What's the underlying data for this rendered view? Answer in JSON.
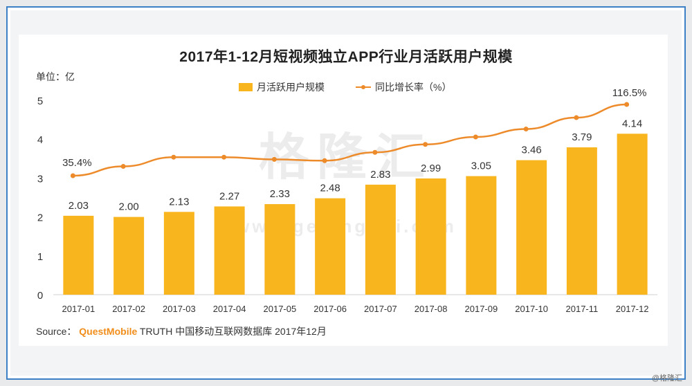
{
  "chart_data": {
    "type": "bar",
    "title": "2017年1-12月短视频独立APP行业月活跃用户规模",
    "unit_label": "单位：亿",
    "categories": [
      "2017-01",
      "2017-02",
      "2017-03",
      "2017-04",
      "2017-05",
      "2017-06",
      "2017-07",
      "2017-08",
      "2017-09",
      "2017-10",
      "2017-11",
      "2017-12"
    ],
    "series": [
      {
        "name": "月活跃用户规模",
        "kind": "bar",
        "color": "#f9b51e",
        "values": [
          2.03,
          2.0,
          2.13,
          2.27,
          2.33,
          2.48,
          2.83,
          2.99,
          3.05,
          3.46,
          3.79,
          4.14
        ],
        "labels": [
          "2.03",
          "2.00",
          "2.13",
          "2.27",
          "2.33",
          "2.48",
          "2.83",
          "2.99",
          "3.05",
          "3.46",
          "3.79",
          "4.14"
        ]
      },
      {
        "name": "同比增长率（%）",
        "kind": "line",
        "color": "#ed8b2b",
        "values": [
          35.4,
          46.0,
          56.5,
          56.5,
          54.0,
          52.5,
          62.0,
          71.0,
          79.5,
          88.5,
          101.5,
          116.5
        ],
        "labels": [
          "35.4%",
          "",
          "",
          "",
          "",
          "",
          "",
          "",
          "",
          "",
          "",
          "116.5%"
        ]
      }
    ],
    "y_ticks": [
      "0",
      "1",
      "2",
      "3",
      "4",
      "5"
    ],
    "ylim": [
      0,
      5
    ],
    "grid": false,
    "legend_position": "top-center",
    "watermark": "格隆汇",
    "watermark_url": "www.gelonghui.com"
  },
  "source": {
    "prefix": "Source：",
    "brand": "QuestMobile",
    "rest": "TRUTH 中国移动互联网数据库 2017年12月"
  },
  "corner_mark": "@格隆汇"
}
